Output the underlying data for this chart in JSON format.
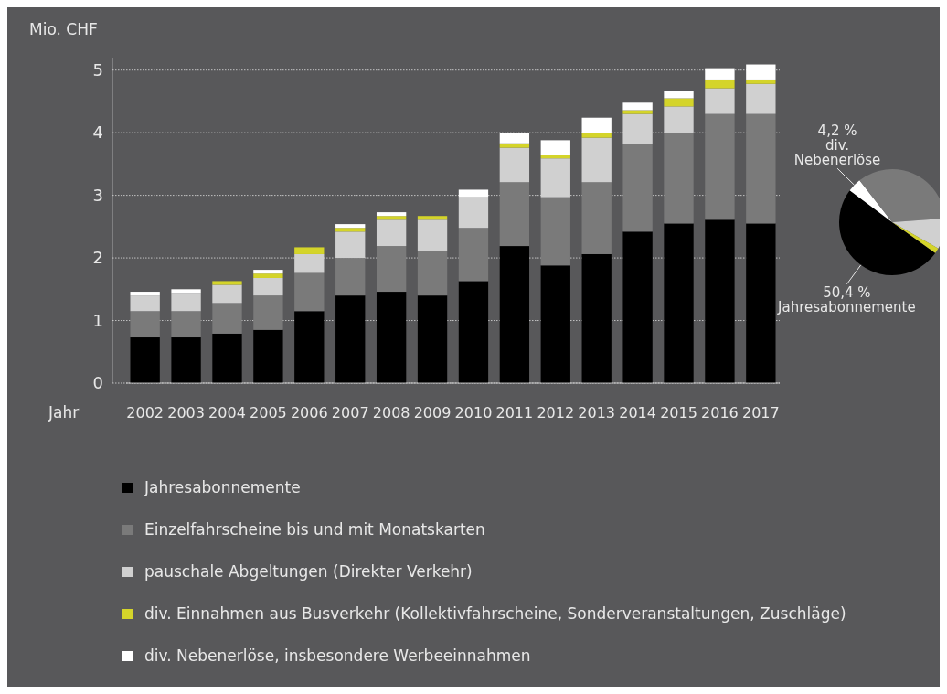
{
  "chart_data": [
    {
      "type": "bar",
      "stacked": true,
      "xlabel": "Jahr",
      "ylabel": "Mio. CHF",
      "categories": [
        "2002",
        "2003",
        "2004",
        "2005",
        "2006",
        "2007",
        "2008",
        "2009",
        "2010",
        "2011",
        "2012",
        "2013",
        "2014",
        "2015",
        "2016",
        "2017"
      ],
      "ylim": [
        0,
        5.2
      ],
      "yticks": [
        0,
        1,
        2,
        3,
        4,
        5
      ],
      "grid": "y",
      "legend": "bottom",
      "series": [
        {
          "name": "Jahresabonnemente",
          "color": "#000000",
          "values": [
            0.73,
            0.73,
            0.79,
            0.85,
            1.15,
            1.4,
            1.46,
            1.4,
            1.63,
            2.19,
            1.88,
            2.06,
            2.42,
            2.55,
            2.61,
            2.55
          ]
        },
        {
          "name": "Einzelfahrscheine bis und mit Monatskarten",
          "color": "#7a7a7a",
          "values": [
            0.42,
            0.42,
            0.49,
            0.55,
            0.61,
            0.6,
            0.73,
            0.71,
            0.85,
            1.02,
            1.09,
            1.15,
            1.4,
            1.45,
            1.69,
            1.75
          ]
        },
        {
          "name": "pauschale Abgeltungen (Direkter Verkehr)",
          "color": "#d0d0d0",
          "values": [
            0.25,
            0.29,
            0.29,
            0.28,
            0.3,
            0.42,
            0.42,
            0.5,
            0.49,
            0.55,
            0.62,
            0.71,
            0.48,
            0.42,
            0.41,
            0.48
          ]
        },
        {
          "name": "div. Einnahmen aus Busverkehr (Kollektivfahrscheine, Sonderveranstaltungen, Zuschläge)",
          "color": "#d4d42a",
          "values": [
            0,
            0,
            0.06,
            0.07,
            0.11,
            0.06,
            0.06,
            0.06,
            0,
            0.07,
            0.05,
            0.07,
            0.06,
            0.13,
            0.14,
            0.07
          ]
        },
        {
          "name": "div. Nebenerlöse, insbesondere Werbeeinnahmen",
          "color": "#ffffff",
          "values": [
            0.06,
            0.06,
            0,
            0.06,
            0,
            0.06,
            0.06,
            0,
            0.12,
            0.16,
            0.24,
            0.25,
            0.12,
            0.12,
            0.18,
            0.24
          ]
        }
      ]
    },
    {
      "type": "pie",
      "categories": [
        "Jahresabonnemente",
        "div. Nebenerlöse",
        null,
        null,
        null
      ],
      "values": [
        50.4,
        4.2,
        34.4,
        9.4,
        1.6
      ],
      "colors": [
        "#000000",
        "#ffffff",
        "#7a7a7a",
        "#d0d0d0",
        "#d4d42a"
      ],
      "value_labels": [
        "50,4 %",
        "4,2 %",
        null,
        null,
        null
      ]
    }
  ]
}
